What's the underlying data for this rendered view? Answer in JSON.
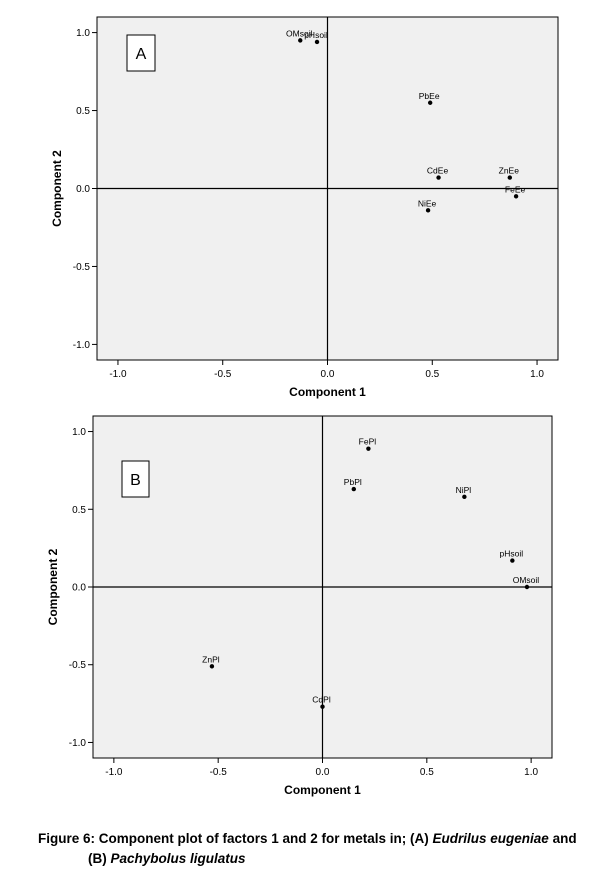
{
  "chart_data": [
    {
      "type": "scatter",
      "panel_label": "A",
      "xlabel": "Component 1",
      "ylabel": "Component 2",
      "xlim": [
        -1.1,
        1.1
      ],
      "ylim": [
        -1.1,
        1.1
      ],
      "xticks": [
        "-1.0",
        "-0.5",
        "0.0",
        "0.5",
        "1.0"
      ],
      "yticks": [
        "1.0",
        "0.5",
        "0.0",
        "-0.5",
        "-1.0"
      ],
      "xtick_values": [
        -1.0,
        -0.5,
        0.0,
        0.5,
        1.0
      ],
      "ytick_values": [
        1.0,
        0.5,
        0.0,
        -0.5,
        -1.0
      ],
      "background": "#f0f0f0",
      "points": [
        {
          "label": "OMsoil",
          "x": -0.13,
          "y": 0.95
        },
        {
          "label": "pHsoil",
          "x": -0.05,
          "y": 0.94
        },
        {
          "label": "PbEe",
          "x": 0.49,
          "y": 0.55
        },
        {
          "label": "CdEe",
          "x": 0.53,
          "y": 0.07
        },
        {
          "label": "ZnEe",
          "x": 0.87,
          "y": 0.07
        },
        {
          "label": "FeEe",
          "x": 0.9,
          "y": -0.05
        },
        {
          "label": "NiEe",
          "x": 0.48,
          "y": -0.14
        }
      ]
    },
    {
      "type": "scatter",
      "panel_label": "B",
      "xlabel": "Component 1",
      "ylabel": "Component 2",
      "xlim": [
        -1.1,
        1.1
      ],
      "ylim": [
        -1.1,
        1.1
      ],
      "xticks": [
        "-1.0",
        "-0.5",
        "0.0",
        "0.5",
        "1.0"
      ],
      "yticks": [
        "1.0",
        "0.5",
        "0.0",
        "-0.5",
        "-1.0"
      ],
      "xtick_values": [
        -1.0,
        -0.5,
        0.0,
        0.5,
        1.0
      ],
      "ytick_values": [
        1.0,
        0.5,
        0.0,
        -0.5,
        -1.0
      ],
      "background": "#f0f0f0",
      "points": [
        {
          "label": "FePl",
          "x": 0.22,
          "y": 0.89
        },
        {
          "label": "PbPl",
          "x": 0.15,
          "y": 0.63
        },
        {
          "label": "NiPl",
          "x": 0.68,
          "y": 0.58
        },
        {
          "label": "pHsoil",
          "x": 0.91,
          "y": 0.17
        },
        {
          "label": "OMsoil",
          "x": 0.98,
          "y": 0.0
        },
        {
          "label": "ZnPl",
          "x": -0.53,
          "y": -0.51
        },
        {
          "label": "CdPl",
          "x": 0.0,
          "y": -0.77
        }
      ]
    }
  ],
  "caption": {
    "prefix": "Figure 6: Component plot of factors 1 and 2 for metals in; (A) ",
    "species_a": "Eudrilus eugeniae",
    "middle": " and",
    "b_prefix": "(B) ",
    "species_b": "Pachybolus ligulatus"
  }
}
